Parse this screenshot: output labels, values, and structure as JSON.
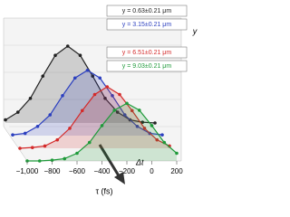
{
  "chart_data": {
    "type": "line",
    "x": [
      -1000,
      -900,
      -800,
      -700,
      -600,
      -500,
      -400,
      -300,
      -200,
      -100,
      0,
      100,
      200
    ],
    "xlim": [
      -1000,
      200
    ],
    "xticks": [
      {
        "value": -1000,
        "label": "−1,000"
      },
      {
        "value": -800,
        "label": "−800"
      },
      {
        "value": -600,
        "label": "−600"
      },
      {
        "value": -400,
        "label": "−400"
      },
      {
        "value": -200,
        "label": "−200"
      },
      0,
      200
    ],
    "ylim": [
      0,
      1
    ],
    "x_label": "τ (fs)",
    "y_label": "y",
    "annotation": "Δt",
    "series": [
      {
        "name": "y = 0.63±0.21 μm",
        "color": "#222222",
        "values": [
          0.04,
          0.14,
          0.32,
          0.61,
          0.88,
          1,
          0.88,
          0.61,
          0.32,
          0.14,
          0.04,
          0.01,
          0
        ]
      },
      {
        "name": "y = 3.15±0.21 μm",
        "color": "#2b3fbf",
        "values": [
          0.01,
          0.03,
          0.12,
          0.27,
          0.52,
          0.75,
          0.85,
          0.75,
          0.52,
          0.27,
          0.12,
          0.03,
          0.01
        ]
      },
      {
        "name": "y = 6.51±0.21 μm",
        "color": "#d42a2a",
        "values": [
          0,
          0.01,
          0.03,
          0.11,
          0.26,
          0.49,
          0.7,
          0.8,
          0.7,
          0.49,
          0.26,
          0.11,
          0.03
        ]
      },
      {
        "name": "y = 9.03±0.21 μm",
        "color": "#1f9a3a",
        "values": [
          0,
          0,
          0.01,
          0.03,
          0.1,
          0.24,
          0.46,
          0.66,
          0.75,
          0.66,
          0.46,
          0.24,
          0.1
        ]
      }
    ]
  }
}
